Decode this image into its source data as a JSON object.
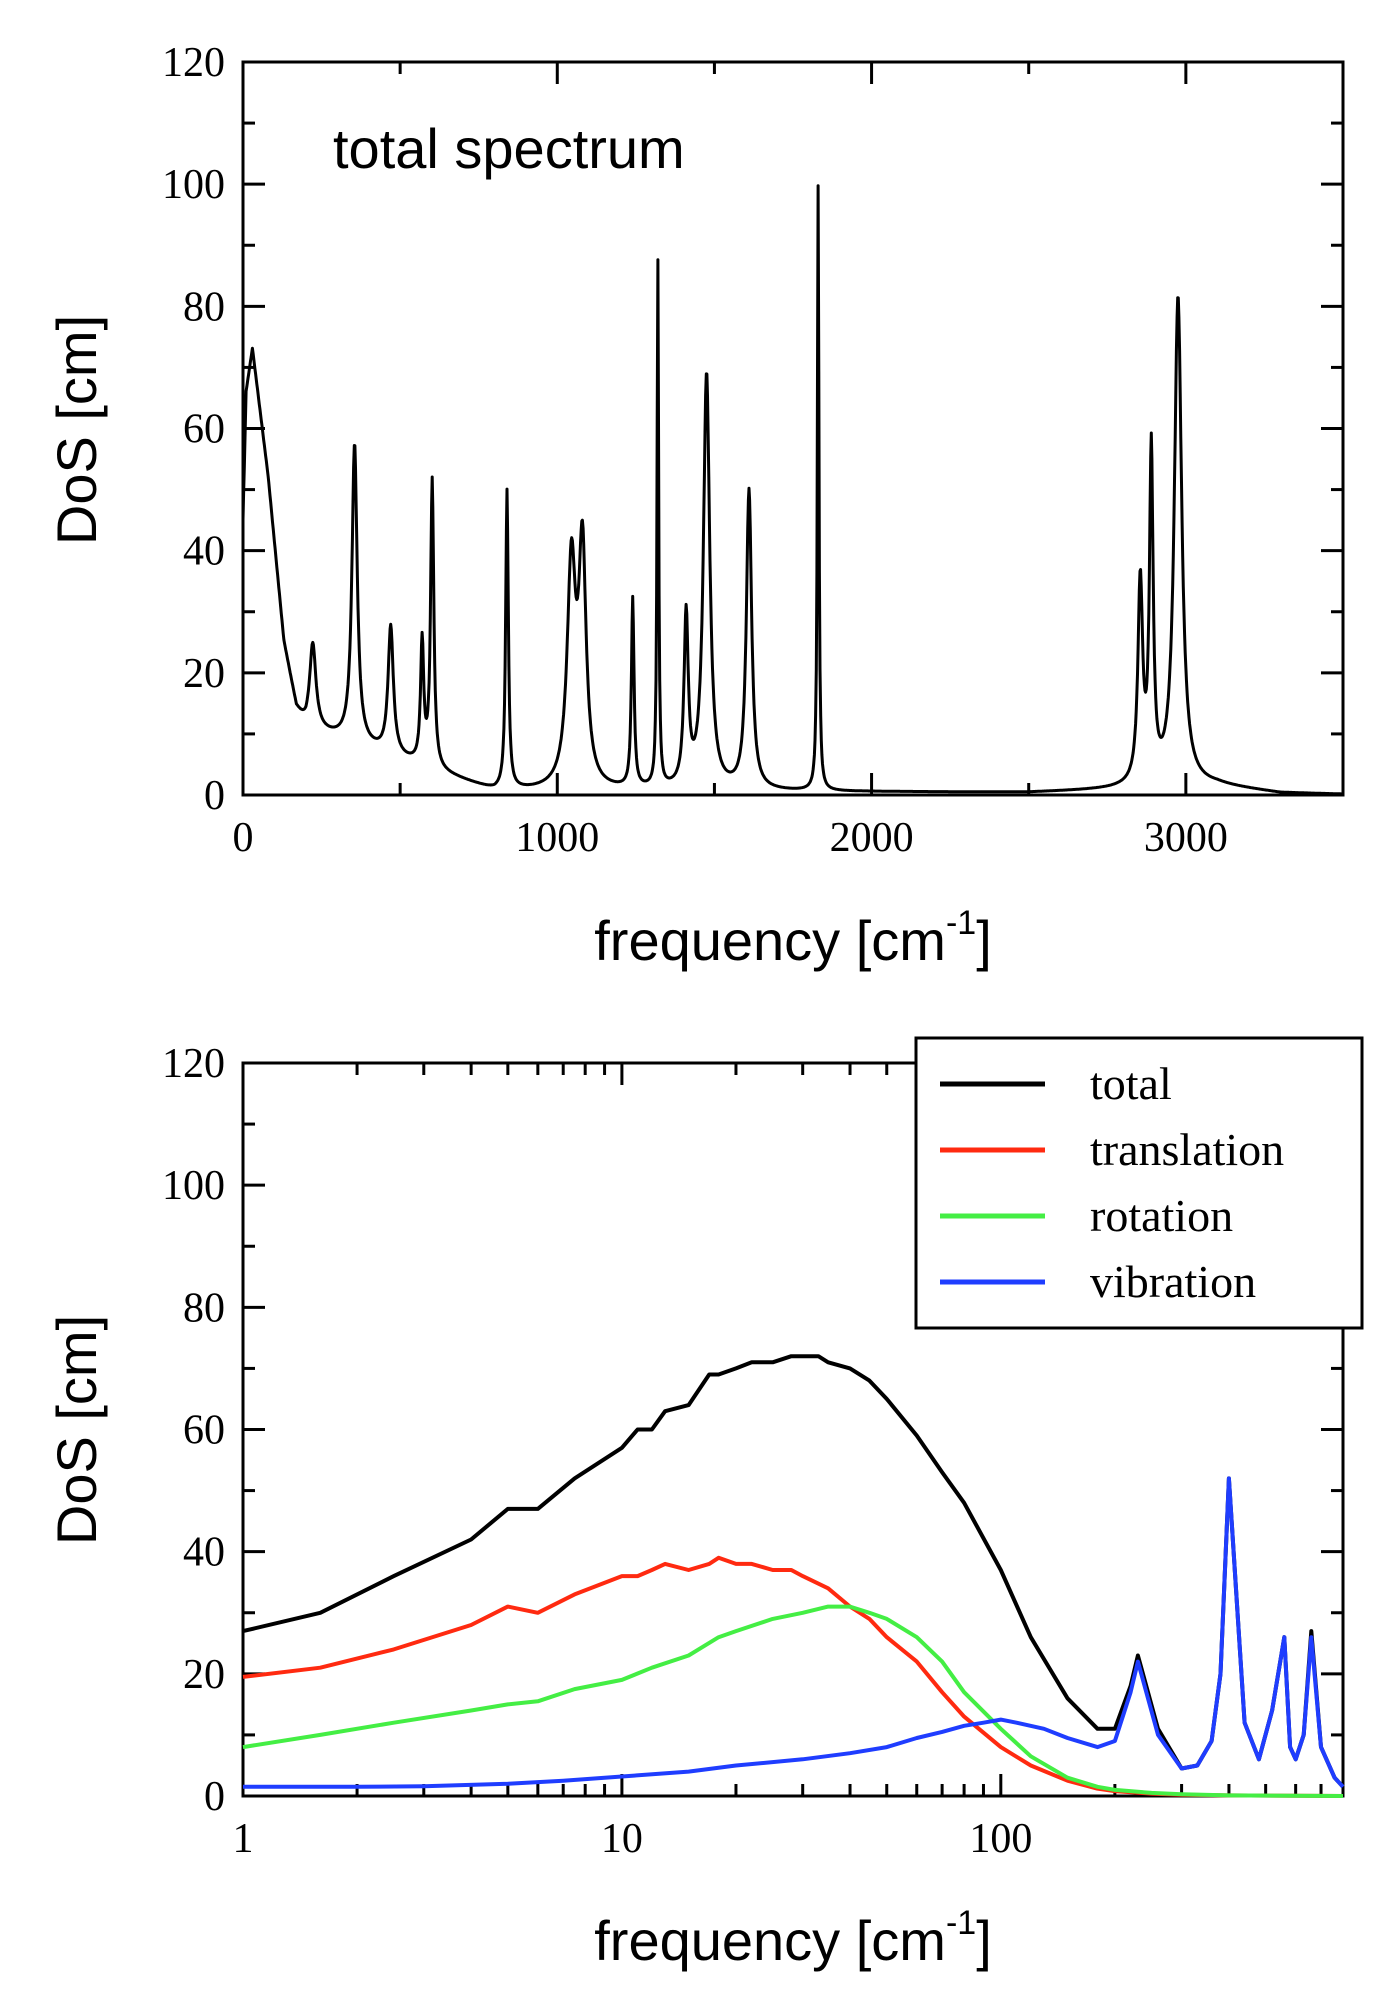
{
  "chart_data": [
    {
      "type": "line",
      "annotation": "total spectrum",
      "xlabel": "frequency [cm",
      "xlabel_sup": "-1",
      "xlabel_close": "]",
      "ylabel": "DoS [cm]",
      "xlim": [
        0,
        3500
      ],
      "ylim": [
        0,
        120
      ],
      "x_scale": "linear",
      "x_ticks": [
        0,
        1000,
        2000,
        3000
      ],
      "x_tick_labels": [
        "0",
        "1000",
        "2000",
        "3000"
      ],
      "y_ticks": [
        0,
        20,
        40,
        60,
        80,
        100,
        120
      ],
      "y_tick_labels": [
        "0",
        "20",
        "40",
        "60",
        "80",
        "100",
        "120"
      ],
      "baseline": [
        [
          0,
          45
        ],
        [
          10,
          66
        ],
        [
          30,
          73
        ],
        [
          80,
          52
        ],
        [
          130,
          25
        ],
        [
          170,
          14
        ],
        [
          200,
          11
        ],
        [
          800,
          0.6
        ],
        [
          1900,
          0.5
        ],
        [
          2000,
          0.5
        ],
        [
          2500,
          0.4
        ],
        [
          2750,
          0.8
        ],
        [
          3100,
          1.5
        ],
        [
          3300,
          0.3
        ],
        [
          3500,
          0.1
        ]
      ],
      "peaks": [
        {
          "x": 222,
          "h": 14,
          "w": 12
        },
        {
          "x": 355,
          "h": 49,
          "w": 10
        },
        {
          "x": 470,
          "h": 21,
          "w": 10
        },
        {
          "x": 570,
          "h": 20,
          "w": 6
        },
        {
          "x": 602,
          "h": 47,
          "w": 6
        },
        {
          "x": 840,
          "h": 49,
          "w": 5
        },
        {
          "x": 1045,
          "h": 36,
          "w": 16
        },
        {
          "x": 1080,
          "h": 38,
          "w": 14
        },
        {
          "x": 1240,
          "h": 31,
          "w": 5
        },
        {
          "x": 1320,
          "h": 86,
          "w": 3
        },
        {
          "x": 1410,
          "h": 28,
          "w": 8
        },
        {
          "x": 1475,
          "h": 68,
          "w": 12
        },
        {
          "x": 1610,
          "h": 49,
          "w": 10
        },
        {
          "x": 1830,
          "h": 99,
          "w": 3
        },
        {
          "x": 2855,
          "h": 33,
          "w": 9
        },
        {
          "x": 2890,
          "h": 54,
          "w": 7
        },
        {
          "x": 2975,
          "h": 80,
          "w": 14
        }
      ],
      "series": [
        {
          "color": "#000000"
        }
      ]
    },
    {
      "type": "line",
      "xlabel": "frequency [cm",
      "xlabel_sup": "-1",
      "xlabel_close": "]",
      "ylabel": "DoS [cm]",
      "xlim": [
        1,
        800
      ],
      "ylim": [
        0,
        120
      ],
      "x_scale": "log",
      "x_ticks": [
        1,
        10,
        100
      ],
      "x_tick_labels": [
        "1",
        "10",
        "100"
      ],
      "y_ticks": [
        0,
        20,
        40,
        60,
        80,
        100,
        120
      ],
      "y_tick_labels": [
        "0",
        "20",
        "40",
        "60",
        "80",
        "100",
        "120"
      ],
      "legend_position": "top-right",
      "series": [
        {
          "name": "total",
          "color": "#000000",
          "x": [
            1,
            1.6,
            2.5,
            4,
            5,
            6,
            7.5,
            10,
            11,
            12,
            13,
            15,
            17,
            18,
            20,
            22,
            25,
            28,
            30,
            33,
            35,
            40,
            45,
            50,
            60,
            70,
            80,
            100,
            120,
            150,
            180,
            200,
            220,
            230,
            260,
            300,
            330,
            360,
            380,
            400,
            440,
            480,
            520,
            560,
            580,
            600,
            630,
            660,
            700,
            760,
            800
          ],
          "y": [
            27,
            30,
            36,
            42,
            47,
            47,
            52,
            57,
            60,
            60,
            63,
            64,
            69,
            69,
            70,
            71,
            71,
            72,
            72,
            72,
            71,
            70,
            68,
            65,
            59,
            53,
            48,
            37,
            26,
            16,
            11,
            11,
            18,
            23,
            11,
            4.5,
            5,
            9,
            20,
            52,
            12,
            6,
            14,
            26,
            8,
            6,
            10,
            27,
            8,
            3,
            1.5
          ]
        },
        {
          "name": "translation",
          "color": "#ff2a10",
          "x": [
            1,
            1.6,
            2.5,
            4,
            5,
            6,
            7.5,
            10,
            11,
            12,
            13,
            15,
            17,
            18,
            20,
            22,
            25,
            28,
            30,
            35,
            40,
            45,
            50,
            60,
            70,
            80,
            100,
            120,
            150,
            180,
            200,
            250,
            300,
            400,
            800
          ],
          "y": [
            19.5,
            21,
            24,
            28,
            31,
            30,
            33,
            36,
            36,
            37,
            38,
            37,
            38,
            39,
            38,
            38,
            37,
            37,
            36,
            34,
            31,
            29,
            26,
            22,
            17,
            13,
            8,
            5,
            2.5,
            1.2,
            0.8,
            0.4,
            0.2,
            0.1,
            0
          ]
        },
        {
          "name": "rotation",
          "color": "#44ee44",
          "x": [
            1,
            1.6,
            2.5,
            4,
            5,
            6,
            7.5,
            10,
            12,
            15,
            18,
            20,
            25,
            30,
            35,
            40,
            45,
            50,
            60,
            70,
            80,
            100,
            120,
            150,
            180,
            200,
            250,
            300,
            400,
            800
          ],
          "y": [
            8,
            10,
            12,
            14,
            15,
            15.5,
            17.5,
            19,
            21,
            23,
            26,
            27,
            29,
            30,
            31,
            31,
            30,
            29,
            26,
            22,
            17,
            11,
            6.5,
            3,
            1.5,
            1,
            0.5,
            0.3,
            0.1,
            0
          ]
        },
        {
          "name": "vibration",
          "color": "#1f3dff",
          "x": [
            1,
            2,
            3,
            5,
            7,
            10,
            15,
            20,
            30,
            40,
            50,
            60,
            70,
            80,
            90,
            100,
            110,
            130,
            150,
            180,
            200,
            220,
            230,
            260,
            300,
            330,
            360,
            380,
            400,
            440,
            480,
            520,
            560,
            580,
            600,
            630,
            660,
            700,
            760,
            800
          ],
          "y": [
            1.5,
            1.5,
            1.6,
            2,
            2.5,
            3.2,
            4,
            5,
            6,
            7,
            8,
            9.5,
            10.5,
            11.5,
            12,
            12.5,
            12,
            11,
            9.5,
            8,
            9,
            17,
            22,
            10,
            4.5,
            5,
            9,
            20,
            52,
            12,
            6,
            14,
            26,
            8,
            6,
            10,
            26,
            8,
            3,
            1.5
          ]
        }
      ]
    }
  ]
}
